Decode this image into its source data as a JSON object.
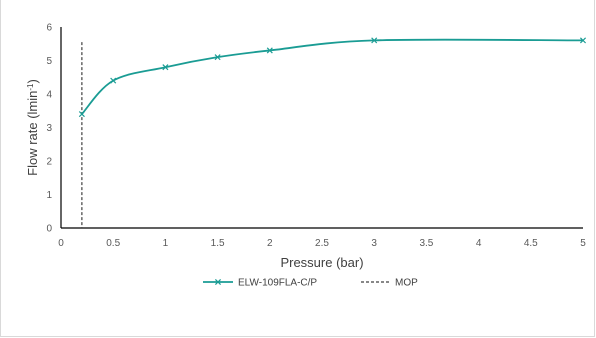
{
  "chart_data": {
    "type": "line",
    "title": "",
    "xlabel": "Pressure (bar)",
    "ylabel": "Flow rate (lmin",
    "ylabel_superscript": "-1",
    "ylabel_suffix": ")",
    "xlim": [
      0,
      5
    ],
    "ylim": [
      0,
      6
    ],
    "x_ticks": [
      "0",
      "0.5",
      "1",
      "1.5",
      "2",
      "2.5",
      "3",
      "3.5",
      "4",
      "4.5",
      "5"
    ],
    "y_ticks": [
      "0",
      "1",
      "2",
      "3",
      "4",
      "5",
      "6"
    ],
    "grid": false,
    "legend_position": "bottom",
    "series": [
      {
        "name": "ELW-109FLA-C/P",
        "color": "#1a9c94",
        "marker": "x",
        "smooth": true,
        "x": [
          0.2,
          0.5,
          1,
          1.5,
          2,
          3,
          5
        ],
        "y": [
          3.4,
          4.4,
          4.8,
          5.1,
          5.3,
          5.6,
          5.6
        ]
      }
    ],
    "reference_lines": [
      {
        "name": "MOP",
        "x": 0.2,
        "color": "#404040",
        "style": "dashed"
      }
    ]
  }
}
